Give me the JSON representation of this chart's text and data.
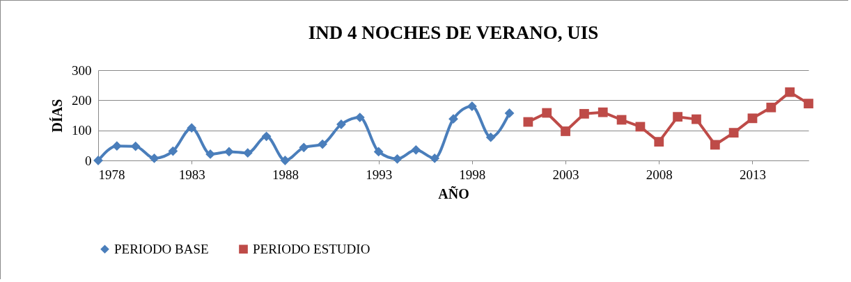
{
  "chart_data": {
    "type": "line",
    "title": "IND 4 NOCHES DE VERANO, UIS",
    "xlabel": "AÑO",
    "ylabel": "DÍAS",
    "xlim": [
      1978,
      2016
    ],
    "xticks": [
      1978,
      1983,
      1988,
      1993,
      1998,
      2003,
      2008,
      2013
    ],
    "ylim": [
      0,
      300
    ],
    "yticks": [
      0,
      100,
      200,
      300
    ],
    "grid": "y",
    "legend": "bottom",
    "series": [
      {
        "name": "PERIODO BASE",
        "color": "#4a7ebb",
        "marker": "diamond",
        "x": [
          1978,
          1979,
          1980,
          1981,
          1982,
          1983,
          1984,
          1985,
          1986,
          1987,
          1988,
          1989,
          1990,
          1991,
          1992,
          1993,
          1994,
          1995,
          1996,
          1997,
          1998,
          1999,
          2000
        ],
        "values": [
          0,
          48,
          47,
          7,
          31,
          108,
          21,
          29,
          25,
          80,
          0,
          43,
          54,
          120,
          143,
          29,
          5,
          35,
          7,
          138,
          180,
          77,
          157
        ]
      },
      {
        "name": "PERIODO ESTUDIO",
        "color": "#be4b48",
        "marker": "square",
        "x": [
          2001,
          2002,
          2003,
          2004,
          2005,
          2006,
          2007,
          2008,
          2009,
          2010,
          2011,
          2012,
          2013,
          2014,
          2015,
          2016
        ],
        "values": [
          128,
          158,
          97,
          155,
          160,
          135,
          112,
          62,
          145,
          137,
          52,
          92,
          140,
          176,
          227,
          189
        ]
      }
    ]
  }
}
